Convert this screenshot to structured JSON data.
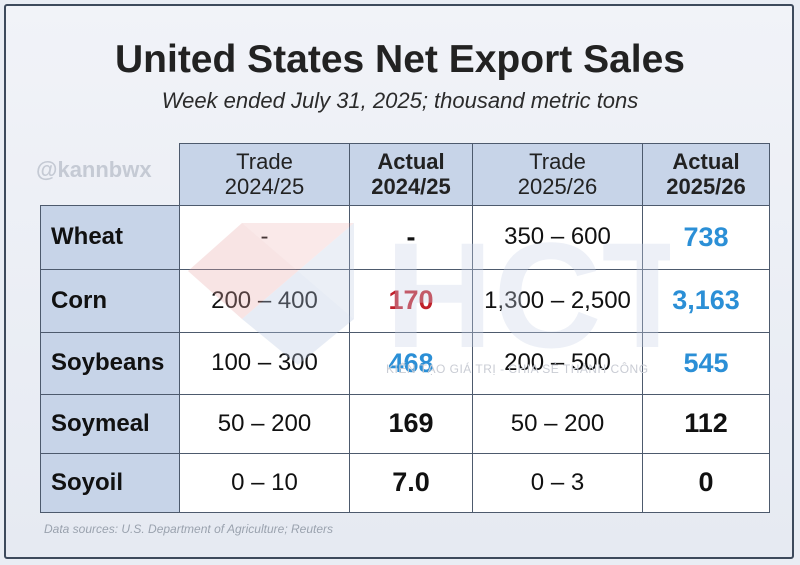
{
  "title": "United States Net Export Sales",
  "subtitle": "Week ended July 31, 2025; thousand metric tons",
  "handle": "@kannbwx",
  "watermark": {
    "brand": "HCT",
    "tagline": "KIẾN TẠO GIÁ TRỊ - CHIA SẺ THÀNH CÔNG"
  },
  "columns": [
    {
      "line1": "Trade",
      "line2": "2024/25",
      "bold": false
    },
    {
      "line1": "Actual",
      "line2": "2024/25",
      "bold": true
    },
    {
      "line1": "Trade",
      "line2": "2025/26",
      "bold": false
    },
    {
      "line1": "Actual",
      "line2": "2025/26",
      "bold": true
    }
  ],
  "rows": [
    {
      "label": "Wheat",
      "trade_2024": "-",
      "actual_2024": "-",
      "trade_2025": "350 – 600",
      "actual_2025": "738"
    },
    {
      "label": "Corn",
      "trade_2024": "200 – 400",
      "actual_2024": "170",
      "trade_2025": "1,300 – 2,500",
      "actual_2025": "3,163"
    },
    {
      "label": "Soybeans",
      "trade_2024": "100 – 300",
      "actual_2024": "468",
      "trade_2025": "200 – 500",
      "actual_2025": "545"
    },
    {
      "label": "Soymeal",
      "trade_2024": "50 – 200",
      "actual_2024": "169",
      "trade_2025": "50 – 200",
      "actual_2025": "112"
    },
    {
      "label": "Soyoil",
      "trade_2024": "0 – 10",
      "actual_2024": "7.0",
      "trade_2025": "0 – 3",
      "actual_2025": "0"
    }
  ],
  "colors": {
    "above_range": "#2b8fd6",
    "below_range": "#c0202a",
    "header_fill": "#c7d4e8"
  },
  "source": "Data sources: U.S. Department of Agriculture; Reuters"
}
